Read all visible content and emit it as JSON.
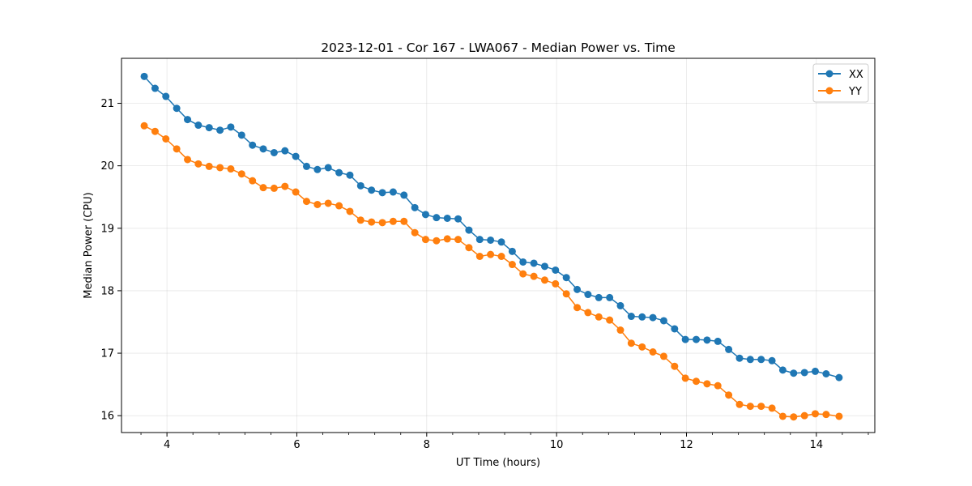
{
  "chart_data": {
    "type": "line",
    "title": "2023-12-01 - Cor 167 - LWA067 - Median Power vs. Time",
    "xlabel": "UT Time (hours)",
    "ylabel": "Median Power (CPU)",
    "xlim": [
      3.3,
      14.9
    ],
    "ylim": [
      15.73,
      21.72
    ],
    "grid": true,
    "legend_position": "top-right",
    "xticks": [
      4,
      6,
      8,
      10,
      12,
      14
    ],
    "xtick_labels": [
      "4",
      "6",
      "8",
      "10",
      "12",
      "14"
    ],
    "yticks": [
      16,
      17,
      18,
      19,
      20,
      21
    ],
    "ytick_labels": [
      "16",
      "17",
      "18",
      "19",
      "20",
      "21"
    ],
    "x": [
      3.65,
      3.817,
      3.983,
      4.15,
      4.317,
      4.483,
      4.65,
      4.817,
      4.983,
      5.15,
      5.317,
      5.483,
      5.65,
      5.817,
      5.983,
      6.15,
      6.317,
      6.483,
      6.65,
      6.817,
      6.983,
      7.15,
      7.317,
      7.483,
      7.65,
      7.817,
      7.983,
      8.15,
      8.317,
      8.483,
      8.65,
      8.817,
      8.983,
      9.15,
      9.317,
      9.483,
      9.65,
      9.817,
      9.983,
      10.15,
      10.317,
      10.483,
      10.65,
      10.817,
      10.983,
      11.15,
      11.317,
      11.483,
      11.65,
      11.817,
      11.983,
      12.15,
      12.317,
      12.483,
      12.65,
      12.817,
      12.983,
      13.15,
      13.317,
      13.483,
      13.65,
      13.817,
      13.983,
      14.15,
      14.35
    ],
    "series": [
      {
        "name": "XX",
        "color": "#1f77b4",
        "values": [
          21.43,
          21.24,
          21.11,
          20.92,
          20.74,
          20.65,
          20.61,
          20.57,
          20.62,
          20.49,
          20.33,
          20.27,
          20.21,
          20.24,
          20.15,
          19.99,
          19.94,
          19.97,
          19.89,
          19.85,
          19.68,
          19.61,
          19.57,
          19.58,
          19.53,
          19.33,
          19.22,
          19.17,
          19.16,
          19.15,
          18.97,
          18.82,
          18.81,
          18.78,
          18.63,
          18.46,
          18.44,
          18.39,
          18.33,
          18.21,
          18.02,
          17.94,
          17.89,
          17.89,
          17.76,
          17.59,
          17.58,
          17.57,
          17.52,
          17.39,
          17.22,
          17.22,
          17.21,
          17.19,
          17.06,
          16.92,
          16.9,
          16.9,
          16.88,
          16.73,
          16.68,
          16.69,
          16.71,
          16.67,
          16.61
        ]
      },
      {
        "name": "YY",
        "color": "#ff7f0e",
        "values": [
          20.64,
          20.55,
          20.43,
          20.27,
          20.1,
          20.03,
          19.99,
          19.97,
          19.95,
          19.87,
          19.76,
          19.65,
          19.64,
          19.67,
          19.58,
          19.43,
          19.38,
          19.4,
          19.36,
          19.27,
          19.13,
          19.1,
          19.09,
          19.11,
          19.11,
          18.93,
          18.82,
          18.8,
          18.83,
          18.82,
          18.69,
          18.55,
          18.58,
          18.55,
          18.42,
          18.27,
          18.23,
          18.17,
          18.11,
          17.95,
          17.73,
          17.65,
          17.58,
          17.53,
          17.37,
          17.16,
          17.1,
          17.02,
          16.95,
          16.79,
          16.6,
          16.55,
          16.51,
          16.48,
          16.33,
          16.18,
          16.15,
          16.15,
          16.12,
          15.99,
          15.98,
          16.0,
          16.03,
          16.02,
          15.99
        ]
      }
    ]
  }
}
